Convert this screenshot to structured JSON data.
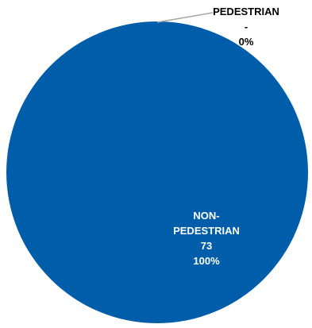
{
  "chart_data": {
    "type": "pie",
    "slices": [
      {
        "category": "NON-PEDESTRIAN",
        "category_lines": [
          "NON-",
          "PEDESTRIAN"
        ],
        "value": 73,
        "value_text": "73",
        "percent_text": "100%",
        "color": "#005DAA"
      },
      {
        "category": "PEDESTRIAN",
        "category_lines": [
          "PEDESTRIAN"
        ],
        "value": 0,
        "value_text": "-",
        "percent_text": "0%",
        "color": "#A5A5A5"
      }
    ],
    "label_colors": {
      "inside": "#FFFFFF",
      "outside": "#000000"
    },
    "leader_line_color": "#A6A6A6",
    "legend": false
  }
}
